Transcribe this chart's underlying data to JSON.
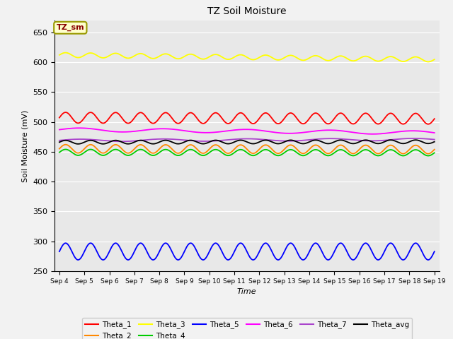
{
  "title": "TZ Soil Moisture",
  "xlabel": "Time",
  "ylabel": "Soil Moisture (mV)",
  "ylim": [
    250,
    670
  ],
  "yticks": [
    250,
    300,
    350,
    400,
    450,
    500,
    550,
    600,
    650
  ],
  "n_points": 1440,
  "background_color": "#e8e8e8",
  "fig_bg": "#f2f2f2",
  "series": {
    "Theta_1": {
      "color": "#ff0000",
      "base": 507,
      "amp": 9,
      "trend": -0.12,
      "wave_freq": 1.0
    },
    "Theta_2": {
      "color": "#ff8800",
      "base": 455,
      "amp": 7,
      "trend": -0.08,
      "wave_freq": 1.0
    },
    "Theta_3": {
      "color": "#ffff00",
      "base": 612,
      "amp": 4,
      "trend": -0.5,
      "wave_freq": 1.0
    },
    "Theta_4": {
      "color": "#00cc00",
      "base": 449,
      "amp": 5,
      "trend": -0.05,
      "wave_freq": 1.0
    },
    "Theta_5": {
      "color": "#0000ff",
      "base": 283,
      "amp": 14,
      "trend": 0.0,
      "wave_freq": 1.0
    },
    "Theta_6": {
      "color": "#ff00ff",
      "base": 487,
      "amp": 3,
      "trend": -0.35,
      "wave_freq": 0.3
    },
    "Theta_7": {
      "color": "#aa44cc",
      "base": 469,
      "amp": 2,
      "trend": 0.1,
      "wave_freq": 0.3
    },
    "Theta_avg": {
      "color": "#000000",
      "base": 466,
      "amp": 3,
      "trend": 0.05,
      "wave_freq": 1.0
    }
  },
  "legend_order": [
    "Theta_1",
    "Theta_2",
    "Theta_3",
    "Theta_4",
    "Theta_5",
    "Theta_6",
    "Theta_7",
    "Theta_avg"
  ],
  "legend_label": "TZ_sm",
  "legend_bg": "#ffffcc",
  "legend_border": "#999900",
  "legend_text_color": "#880000",
  "xtick_labels": [
    "Sep 4",
    "Sep 5",
    "Sep 6",
    "Sep 7",
    "Sep 8",
    "Sep 9",
    "Sep 10",
    "Sep 11",
    "Sep 12",
    "Sep 13",
    "Sep 14",
    "Sep 15",
    "Sep 16",
    "Sep 17",
    "Sep 18",
    "Sep 19"
  ]
}
